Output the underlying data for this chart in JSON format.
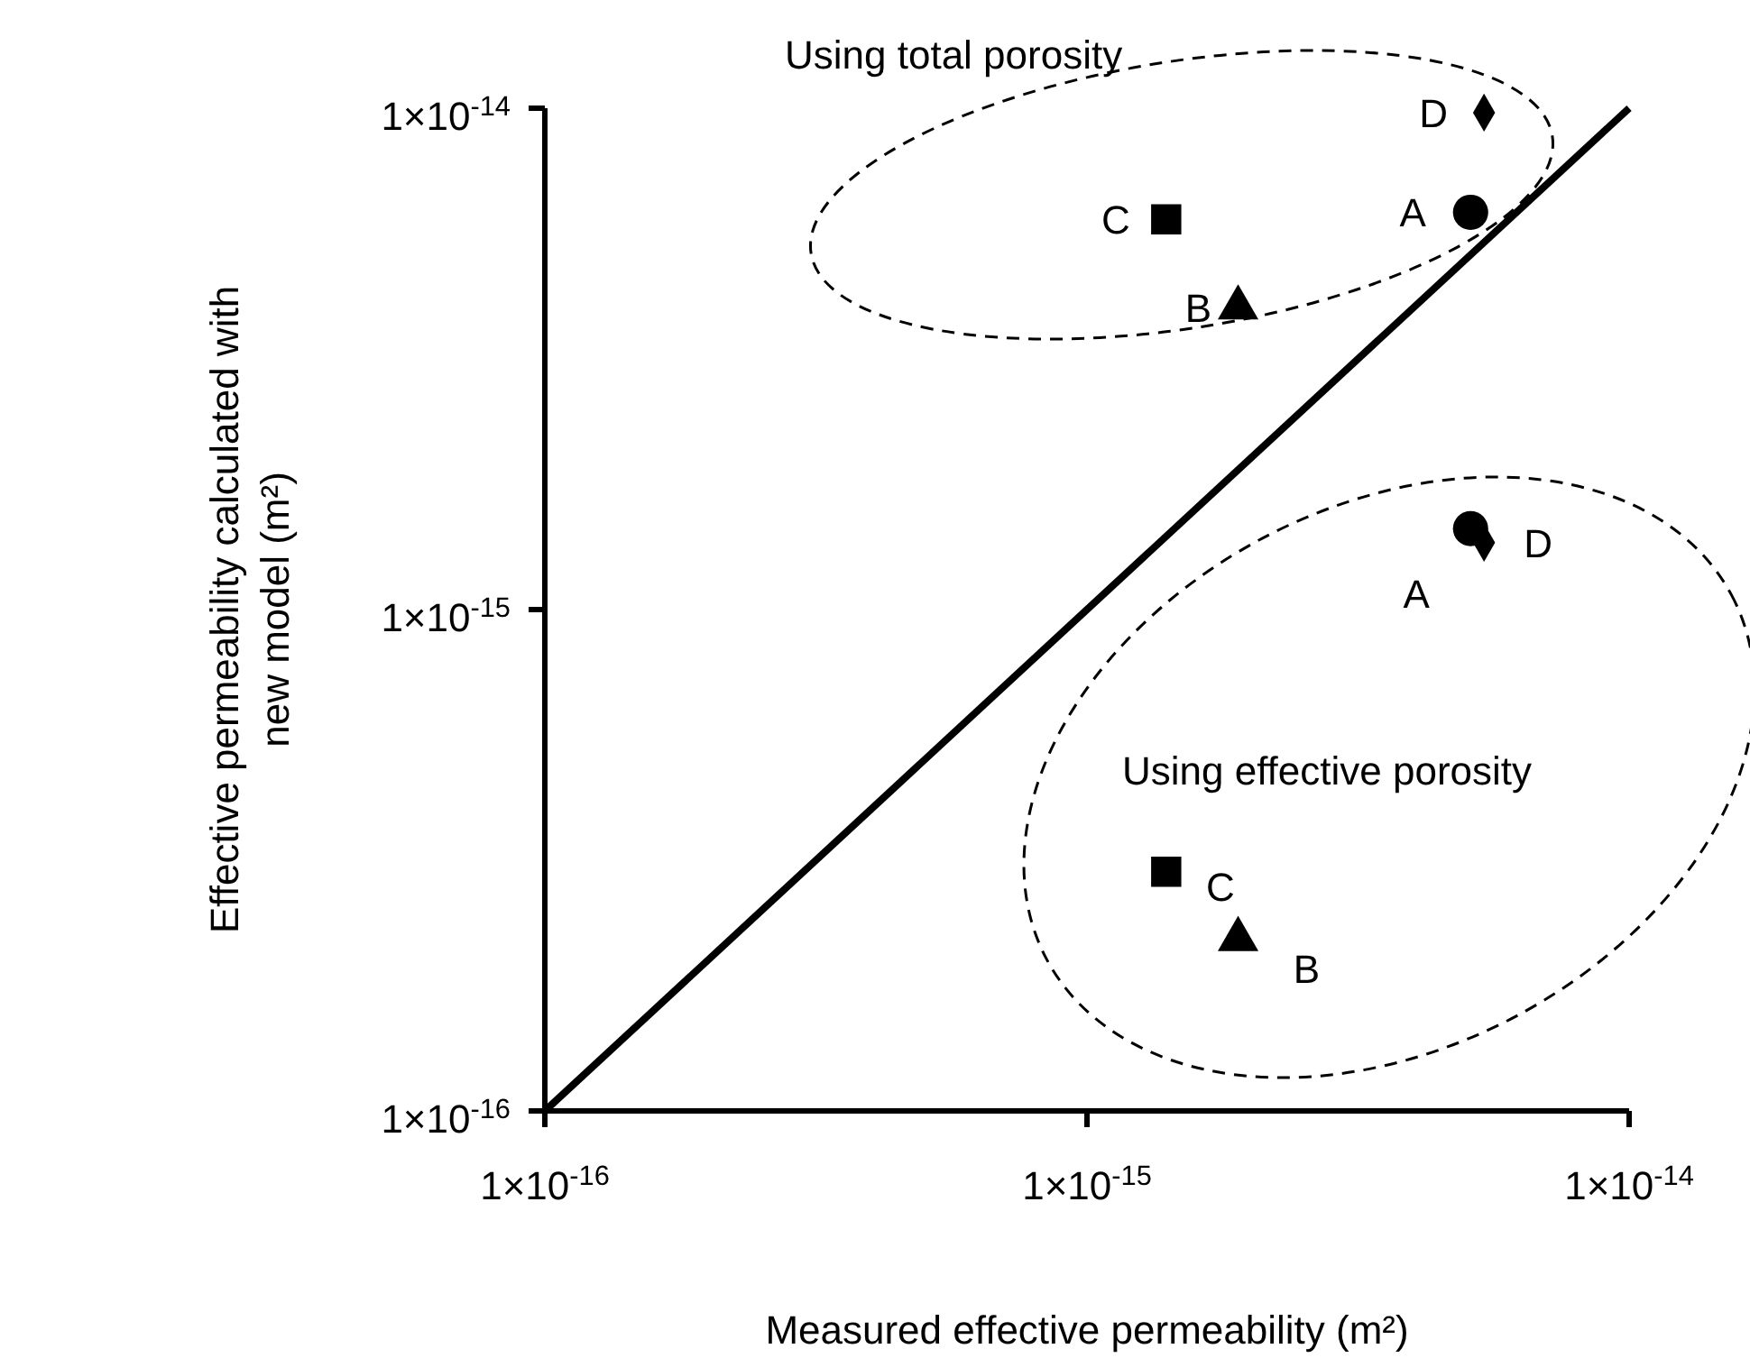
{
  "chart_data": {
    "type": "scatter",
    "xlabel": "Measured effective permeability (m²)",
    "ylabel": "Effective permeability calculated  with new model (m²)",
    "log": "xy",
    "xlim": [
      1e-16,
      1e-14
    ],
    "ylim": [
      1e-16,
      1e-14
    ],
    "xticks": [
      {
        "value": 1e-16,
        "label": "1×10$^{-16}$"
      },
      {
        "value": 1e-15,
        "label": "1×10$^{-15}$"
      },
      {
        "value": 1e-14,
        "label": "1×10$^{-14}$"
      }
    ],
    "yticks": [
      {
        "value": 1e-16,
        "label": "1×10$^{-16}$"
      },
      {
        "value": 1e-15,
        "label": "1×10$^{-15}$"
      },
      {
        "value": 1e-14,
        "label": "1×10$^{-14}$"
      }
    ],
    "series": [
      {
        "type": "line",
        "color": "#000000",
        "line_style": "solid",
        "marker": "none",
        "x": [
          1e-16,
          1e-14
        ],
        "values": [
          1e-16,
          1e-14
        ]
      },
      {
        "color": "#000000",
        "marker": "circle",
        "x": [
          5.1e-15,
          5.1e-15
        ],
        "values": [
          6.2e-15,
          1.45e-15
        ]
      },
      {
        "color": "#000000",
        "marker": "triangle",
        "x": [
          1.9e-15,
          1.9e-15
        ],
        "values": [
          4e-15,
          2.2e-16
        ]
      },
      {
        "color": "#000000",
        "marker": "square",
        "x": [
          1.4e-15,
          1.4e-15
        ],
        "values": [
          6e-15,
          3e-16
        ]
      },
      {
        "color": "#000000",
        "marker": "diamond",
        "x": [
          5.4e-15,
          5.4e-15
        ],
        "values": [
          9.8e-15,
          1.36e-15
        ]
      }
    ],
    "annotations": [
      {
        "text": "A",
        "x": 5.1e-15,
        "y": 6.2e-15
      },
      {
        "text": "B",
        "x": 1.9e-15,
        "y": 4e-15
      },
      {
        "text": "C",
        "x": 1.4e-15,
        "y": 6e-15
      },
      {
        "text": "D",
        "x": 5.4e-15,
        "y": 9.8e-15
      },
      {
        "text": "A",
        "x": 5.1e-15,
        "y": 1.45e-15
      },
      {
        "text": "B",
        "x": 1.9e-15,
        "y": 2.2e-16
      },
      {
        "text": "C",
        "x": 1.4e-15,
        "y": 3e-16
      },
      {
        "text": "D",
        "x": 5.4e-15,
        "y": 1.36e-15
      },
      "Using total porosity",
      "Using effective porosity"
    ]
  }
}
